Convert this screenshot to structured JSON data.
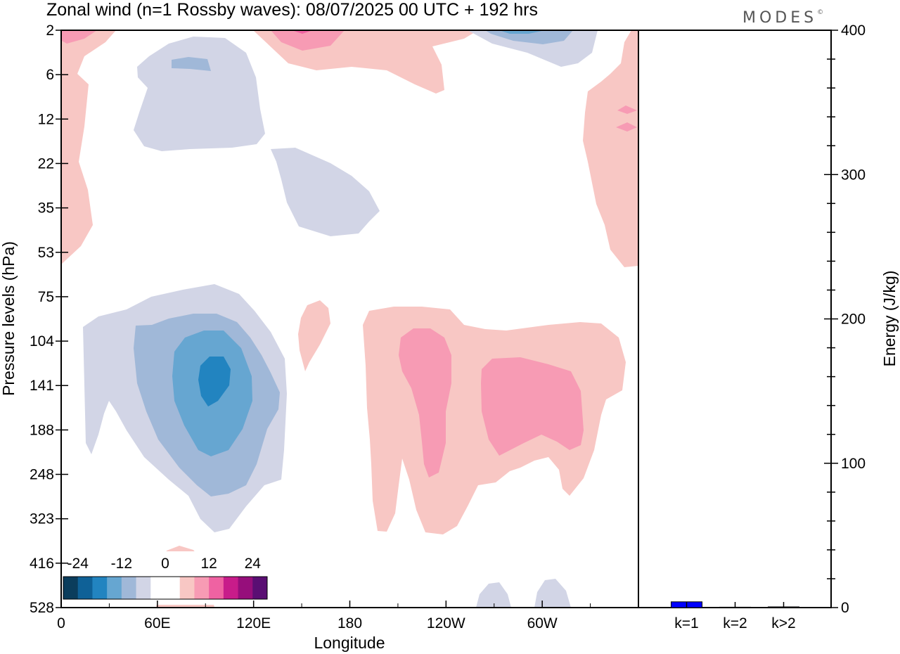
{
  "header": {
    "title": "Zonal wind (n=1 Rossby waves):  08/07/2025  00 UTC  + 192 hrs",
    "brand": "MODES",
    "brand_mark": "©"
  },
  "chart_data": [
    {
      "type": "heatmap",
      "title": "Zonal wind (n=1 Rossby waves):  08/07/2025  00 UTC  + 192 hrs",
      "xlabel": "Longitude",
      "ylabel": "Pressure levels (hPa)",
      "x_ticks": [
        "0",
        "60E",
        "120E",
        "180",
        "120W",
        "60W"
      ],
      "x_tick_degrees": [
        0,
        60,
        120,
        180,
        240,
        300
      ],
      "xlim": [
        0,
        360
      ],
      "y_ticks": [
        "2",
        "6",
        "12",
        "22",
        "35",
        "53",
        "75",
        "104",
        "141",
        "188",
        "248",
        "323",
        "416",
        "528"
      ],
      "colorbar": {
        "labels": [
          "-24",
          "-12",
          "0",
          "12",
          "24"
        ],
        "colors": [
          "#0b3d5c",
          "#0f6197",
          "#2284c0",
          "#66a6d1",
          "#a0b8d8",
          "#d2d5e6",
          "#ffffff",
          "#ffffff",
          "#f8c7c4",
          "#f79bb4",
          "#ef62a2",
          "#c81c8a",
          "#960e7b",
          "#5a0e73"
        ]
      },
      "features": [
        {
          "sign": "negative",
          "longitude": 93,
          "level_hPa": 141,
          "level": 0
        },
        {
          "sign": "positive",
          "longitude": 242,
          "level_hPa": 141,
          "level": 1
        },
        {
          "sign": "positive",
          "longitude": 279,
          "level_hPa": 141,
          "level": 1
        },
        {
          "sign": "negative",
          "longitude": 93,
          "level_hPa": 6,
          "level": 1
        },
        {
          "sign": "positive",
          "longitude": 150,
          "level_hPa": 2,
          "level": 1
        },
        {
          "sign": "negative",
          "longitude": 278,
          "level_hPa": 2,
          "level": 2
        }
      ]
    },
    {
      "type": "bar",
      "ylabel": "Energy (J/kg)",
      "categories": [
        "k=1",
        "k=2",
        "k>2"
      ],
      "values": [
        4,
        0,
        0.5
      ],
      "ylim": [
        0,
        400
      ],
      "y_ticks": [
        "0",
        "100",
        "200",
        "300",
        "400"
      ],
      "bar_color": "#0000ff"
    }
  ]
}
